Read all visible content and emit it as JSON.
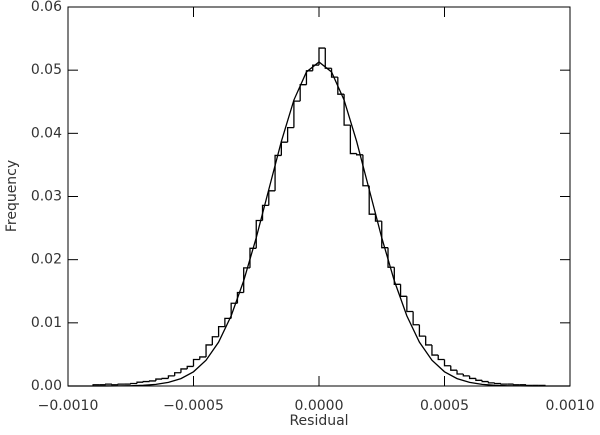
{
  "chart_data": {
    "type": "histogram",
    "xlabel": "Residual",
    "ylabel": "Frequency",
    "color": "#000000",
    "xlim": [
      -0.001,
      0.001
    ],
    "ylim": [
      0,
      0.06
    ],
    "xticks": [
      {
        "value": -0.001,
        "label": "−0.0010"
      },
      {
        "value": -0.0005,
        "label": "−0.0005"
      },
      {
        "value": 0,
        "label": "0.0000"
      },
      {
        "value": 0.0005,
        "label": "0.0005"
      },
      {
        "value": 0.001,
        "label": "0.0010"
      }
    ],
    "yticks": [
      {
        "value": 0,
        "label": "0.00"
      },
      {
        "value": 0.01,
        "label": "0.01"
      },
      {
        "value": 0.02,
        "label": "0.02"
      },
      {
        "value": 0.03,
        "label": "0.03"
      },
      {
        "value": 0.04,
        "label": "0.04"
      },
      {
        "value": 0.05,
        "label": "0.05"
      },
      {
        "value": 0.06,
        "label": "0.06"
      }
    ],
    "bins": [
      -0.0009,
      -0.000875,
      -0.00085,
      -0.000825,
      -0.0008,
      -0.000775,
      -0.00075,
      -0.000725,
      -0.0007,
      -0.000675,
      -0.00065,
      -0.000625,
      -0.0006,
      -0.000575,
      -0.00055,
      -0.000525,
      -0.0005,
      -0.000475,
      -0.00045,
      -0.000425,
      -0.0004,
      -0.000375,
      -0.00035,
      -0.000325,
      -0.0003,
      -0.000275,
      -0.00025,
      -0.000225,
      -0.0002,
      -0.000175,
      -0.00015,
      -0.000125,
      -0.0001,
      -7.5e-05,
      -5e-05,
      -2.5e-05,
      0,
      2.5e-05,
      5e-05,
      7.5e-05,
      0.0001,
      0.000125,
      0.00015,
      0.000175,
      0.0002,
      0.000225,
      0.00025,
      0.000275,
      0.0003,
      0.000325,
      0.00035,
      0.000375,
      0.0004,
      0.000425,
      0.00045,
      0.000475,
      0.0005,
      0.000525,
      0.00055,
      0.000575,
      0.0006,
      0.000625,
      0.00065,
      0.000675,
      0.0007,
      0.000725,
      0.00075,
      0.000775,
      0.0008,
      0.000825,
      0.00085,
      0.000875,
      0.0009
    ],
    "values": [
      0.0002,
      0.0002,
      0.0003,
      0.0002,
      0.0003,
      0.0003,
      0.0004,
      0.0006,
      0.0007,
      0.0008,
      0.0011,
      0.0012,
      0.0016,
      0.0021,
      0.0027,
      0.0031,
      0.0042,
      0.0046,
      0.0065,
      0.0078,
      0.0094,
      0.0107,
      0.0131,
      0.0148,
      0.0187,
      0.0218,
      0.0262,
      0.0286,
      0.0309,
      0.0365,
      0.0386,
      0.0409,
      0.0451,
      0.0477,
      0.0499,
      0.0508,
      0.0535,
      0.0503,
      0.0489,
      0.0462,
      0.0413,
      0.0368,
      0.0366,
      0.0317,
      0.0272,
      0.0261,
      0.0219,
      0.0188,
      0.0161,
      0.0142,
      0.0118,
      0.0097,
      0.0079,
      0.0065,
      0.0049,
      0.0042,
      0.0032,
      0.0025,
      0.0019,
      0.0016,
      0.0012,
      0.0009,
      0.0007,
      0.0005,
      0.0004,
      0.0003,
      0.0003,
      0.0002,
      0.0002,
      0.0001,
      0.0001,
      0.0001
    ],
    "fit": {
      "type": "line",
      "color": "#000000",
      "x": [
        -0.001,
        -0.00095,
        -0.0009,
        -0.00085,
        -0.0008,
        -0.00075,
        -0.0007,
        -0.00065,
        -0.0006,
        -0.00055,
        -0.0005,
        -0.00045,
        -0.0004,
        -0.00035,
        -0.0003,
        -0.00025,
        -0.0002,
        -0.00015,
        -0.0001,
        -5e-05,
        0,
        5e-05,
        0.0001,
        0.00015,
        0.0002,
        0.00025,
        0.0003,
        0.00035,
        0.0004,
        0.00045,
        0.0005,
        0.00055,
        0.0006,
        0.00065,
        0.0007,
        0.00075,
        0.0008,
        0.00085,
        0.0009,
        0.00095,
        0.001
      ],
      "values": [
        2e-07,
        6e-07,
        2e-06,
        6.2e-06,
        1.72e-05,
        4.53e-05,
        0.000112,
        0.000262,
        0.00057,
        0.00117,
        0.00225,
        0.00408,
        0.00694,
        0.0111,
        0.01666,
        0.02348,
        0.03111,
        0.03872,
        0.04527,
        0.04972,
        0.0513,
        0.04972,
        0.04527,
        0.03872,
        0.03111,
        0.02348,
        0.01666,
        0.0111,
        0.00694,
        0.00408,
        0.00225,
        0.00117,
        0.00057,
        0.000262,
        0.000112,
        4.53e-05,
        1.72e-05,
        6.2e-06,
        2e-06,
        6e-07,
        2e-07
      ]
    }
  }
}
